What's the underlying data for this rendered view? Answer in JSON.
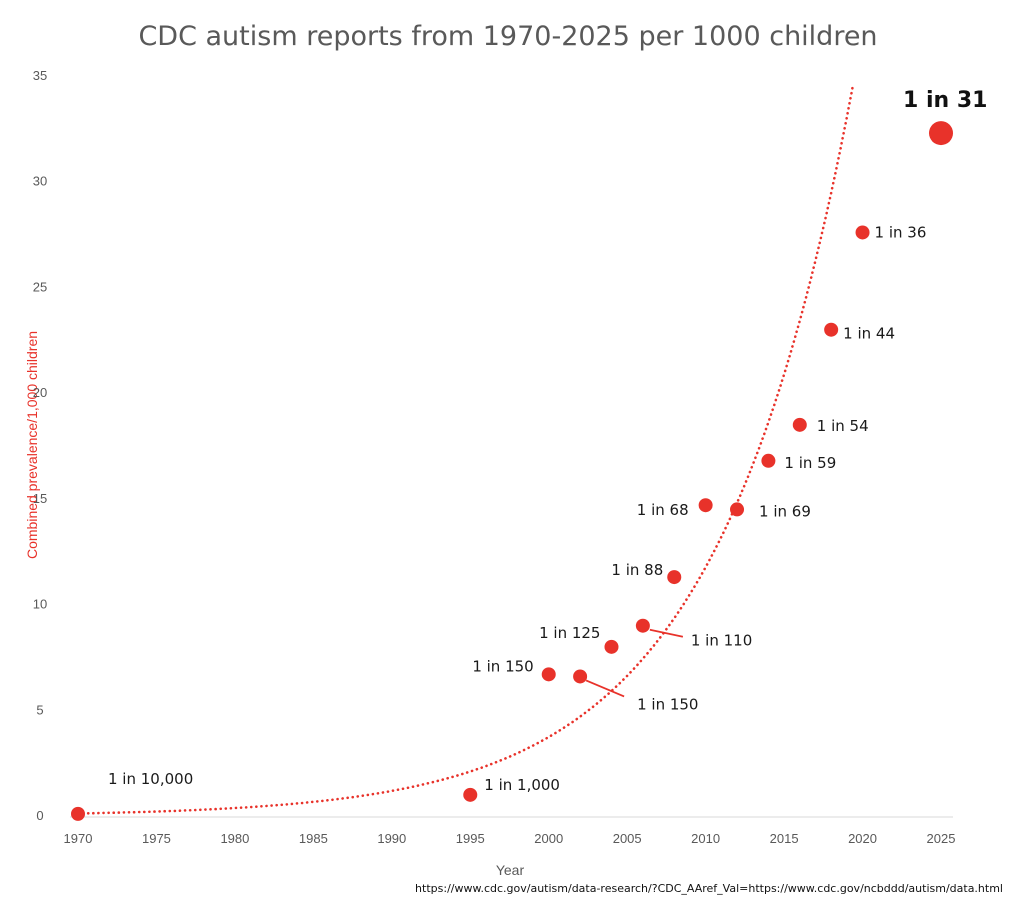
{
  "chart_data": {
    "type": "scatter",
    "title": "CDC autism reports from 1970-2025 per 1000 children",
    "xlabel": "Year",
    "ylabel": "Combined prevalence/1,000 children",
    "xlim": [
      1970,
      2025
    ],
    "ylim": [
      0,
      35
    ],
    "x_ticks": [
      "1970",
      "1975",
      "1980",
      "1985",
      "1990",
      "1995",
      "2000",
      "2005",
      "2010",
      "2015",
      "2020",
      "2025"
    ],
    "y_ticks": [
      "0",
      "5",
      "10",
      "15",
      "20",
      "25",
      "30",
      "35"
    ],
    "grid": false,
    "marker_color": "#e8322a",
    "trendline": {
      "type": "exponential",
      "style": "dotted",
      "color": "#e8322a"
    },
    "points": [
      {
        "x": 1970,
        "y": 0.1,
        "label": "1 in 10,000"
      },
      {
        "x": 1995,
        "y": 1.0,
        "label": "1 in 1,000"
      },
      {
        "x": 2000,
        "y": 6.7,
        "label": "1 in 150"
      },
      {
        "x": 2002,
        "y": 6.6,
        "label": "1 in 150"
      },
      {
        "x": 2004,
        "y": 8.0,
        "label": "1 in 125"
      },
      {
        "x": 2006,
        "y": 9.0,
        "label": "1 in 110"
      },
      {
        "x": 2008,
        "y": 11.3,
        "label": "1 in 88"
      },
      {
        "x": 2010,
        "y": 14.7,
        "label": "1 in 68"
      },
      {
        "x": 2012,
        "y": 14.5,
        "label": "1 in 69"
      },
      {
        "x": 2014,
        "y": 16.8,
        "label": "1 in 59"
      },
      {
        "x": 2016,
        "y": 18.5,
        "label": "1 in 54"
      },
      {
        "x": 2018,
        "y": 23.0,
        "label": "1 in 44"
      },
      {
        "x": 2020,
        "y": 27.6,
        "label": "1 in 36"
      },
      {
        "x": 2025,
        "y": 32.3,
        "label": "1 in 31",
        "highlight": true
      }
    ],
    "source": "https://www.cdc.gov/autism/data-research/?CDC_AAref_Val=https://www.cdc.gov/ncbddd/autism/data.html"
  }
}
